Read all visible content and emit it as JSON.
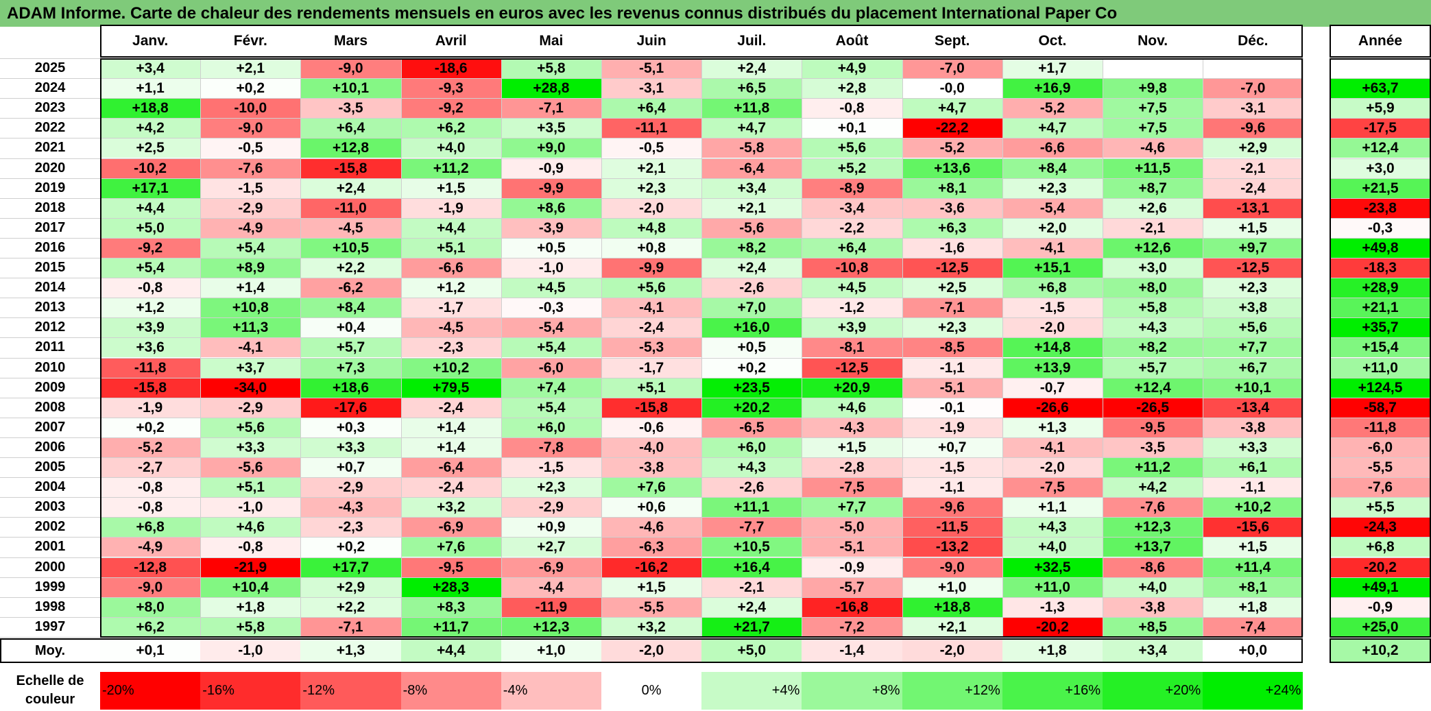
{
  "title": "ADAM Informe. Carte de chaleur des rendements mensuels en euros avec les revenus connus distribués du placement International Paper Co",
  "chart_data": {
    "type": "heatmap",
    "title": "ADAM Informe. Carte de chaleur des rendements mensuels en euros avec les revenus connus distribués du placement International Paper Co",
    "columns": [
      "Janv.",
      "Févr.",
      "Mars",
      "Avril",
      "Mai",
      "Juin",
      "Juil.",
      "Août",
      "Sept.",
      "Oct.",
      "Nov.",
      "Déc."
    ],
    "year_column_label": "Année",
    "rows": [
      {
        "year": "2025",
        "values": [
          "+3,4",
          "+2,1",
          "-9,0",
          "-18,6",
          "+5,8",
          "-5,1",
          "+2,4",
          "+4,9",
          "-7,0",
          "+1,7",
          "",
          ""
        ],
        "annual": ""
      },
      {
        "year": "2024",
        "values": [
          "+1,1",
          "+0,2",
          "+10,1",
          "-9,3",
          "+28,8",
          "-3,1",
          "+6,5",
          "+2,8",
          "-0,0",
          "+16,9",
          "+9,8",
          "-7,0"
        ],
        "annual": "+63,7"
      },
      {
        "year": "2023",
        "values": [
          "+18,8",
          "-10,0",
          "-3,5",
          "-9,2",
          "-7,1",
          "+6,4",
          "+11,8",
          "-0,8",
          "+4,7",
          "-5,2",
          "+7,5",
          "-3,1"
        ],
        "annual": "+5,9"
      },
      {
        "year": "2022",
        "values": [
          "+4,2",
          "-9,0",
          "+6,4",
          "+6,2",
          "+3,5",
          "-11,1",
          "+4,7",
          "+0,1",
          "-22,2",
          "+4,7",
          "+7,5",
          "-9,6"
        ],
        "annual": "-17,5"
      },
      {
        "year": "2021",
        "values": [
          "+2,5",
          "-0,5",
          "+12,8",
          "+4,0",
          "+9,0",
          "-0,5",
          "-5,8",
          "+5,6",
          "-5,2",
          "-6,6",
          "-4,6",
          "+2,9"
        ],
        "annual": "+12,4"
      },
      {
        "year": "2020",
        "values": [
          "-10,2",
          "-7,6",
          "-15,8",
          "+11,2",
          "-0,9",
          "+2,1",
          "-6,4",
          "+5,2",
          "+13,6",
          "+8,4",
          "+11,5",
          "-2,1"
        ],
        "annual": "+3,0"
      },
      {
        "year": "2019",
        "values": [
          "+17,1",
          "-1,5",
          "+2,4",
          "+1,5",
          "-9,9",
          "+2,3",
          "+3,4",
          "-8,9",
          "+8,1",
          "+2,3",
          "+8,7",
          "-2,4"
        ],
        "annual": "+21,5"
      },
      {
        "year": "2018",
        "values": [
          "+4,4",
          "-2,9",
          "-11,0",
          "-1,9",
          "+8,6",
          "-2,0",
          "+2,1",
          "-3,4",
          "-3,6",
          "-5,4",
          "+2,6",
          "-13,1"
        ],
        "annual": "-23,8"
      },
      {
        "year": "2017",
        "values": [
          "+5,0",
          "-4,9",
          "-4,5",
          "+4,4",
          "-3,9",
          "+4,8",
          "-5,6",
          "-2,2",
          "+6,3",
          "+2,0",
          "-2,1",
          "+1,5"
        ],
        "annual": "-0,3"
      },
      {
        "year": "2016",
        "values": [
          "-9,2",
          "+5,4",
          "+10,5",
          "+5,1",
          "+0,5",
          "+0,8",
          "+8,2",
          "+6,4",
          "-1,6",
          "-4,1",
          "+12,6",
          "+9,7"
        ],
        "annual": "+49,8"
      },
      {
        "year": "2015",
        "values": [
          "+5,4",
          "+8,9",
          "+2,2",
          "-6,6",
          "-1,0",
          "-9,9",
          "+2,4",
          "-10,8",
          "-12,5",
          "+15,1",
          "+3,0",
          "-12,5"
        ],
        "annual": "-18,3"
      },
      {
        "year": "2014",
        "values": [
          "-0,8",
          "+1,4",
          "-6,2",
          "+1,2",
          "+4,5",
          "+5,6",
          "-2,6",
          "+4,5",
          "+2,5",
          "+6,8",
          "+8,0",
          "+2,3"
        ],
        "annual": "+28,9"
      },
      {
        "year": "2013",
        "values": [
          "+1,2",
          "+10,8",
          "+8,4",
          "-1,7",
          "-0,3",
          "-4,1",
          "+7,0",
          "-1,2",
          "-7,1",
          "-1,5",
          "+5,8",
          "+3,8"
        ],
        "annual": "+21,1"
      },
      {
        "year": "2012",
        "values": [
          "+3,9",
          "+11,3",
          "+0,4",
          "-4,5",
          "-5,4",
          "-2,4",
          "+16,0",
          "+3,9",
          "+2,3",
          "-2,0",
          "+4,3",
          "+5,6"
        ],
        "annual": "+35,7"
      },
      {
        "year": "2011",
        "values": [
          "+3,6",
          "-4,1",
          "+5,7",
          "-2,3",
          "+5,4",
          "-5,3",
          "+0,5",
          "-8,1",
          "-8,5",
          "+14,8",
          "+8,2",
          "+7,7"
        ],
        "annual": "+15,4"
      },
      {
        "year": "2010",
        "values": [
          "-11,8",
          "+3,7",
          "+7,3",
          "+10,2",
          "-6,0",
          "-1,7",
          "+0,2",
          "-12,5",
          "-1,1",
          "+13,9",
          "+5,7",
          "+6,7"
        ],
        "annual": "+11,0"
      },
      {
        "year": "2009",
        "values": [
          "-15,8",
          "-34,0",
          "+18,6",
          "+79,5",
          "+7,4",
          "+5,1",
          "+23,5",
          "+20,9",
          "-5,1",
          "-0,7",
          "+12,4",
          "+10,1"
        ],
        "annual": "+124,5"
      },
      {
        "year": "2008",
        "values": [
          "-1,9",
          "-2,9",
          "-17,6",
          "-2,4",
          "+5,4",
          "-15,8",
          "+20,2",
          "+4,6",
          "-0,1",
          "-26,6",
          "-26,5",
          "-13,4"
        ],
        "annual": "-58,7"
      },
      {
        "year": "2007",
        "values": [
          "+0,2",
          "+5,6",
          "+0,3",
          "+1,4",
          "+6,0",
          "-0,6",
          "-6,5",
          "-4,3",
          "-1,9",
          "+1,3",
          "-9,5",
          "-3,8"
        ],
        "annual": "-11,8"
      },
      {
        "year": "2006",
        "values": [
          "-5,2",
          "+3,3",
          "+3,3",
          "+1,4",
          "-7,8",
          "-4,0",
          "+6,0",
          "+1,5",
          "+0,7",
          "-4,1",
          "-3,5",
          "+3,3"
        ],
        "annual": "-6,0"
      },
      {
        "year": "2005",
        "values": [
          "-2,7",
          "-5,6",
          "+0,7",
          "-6,4",
          "-1,5",
          "-3,8",
          "+4,3",
          "-2,8",
          "-1,5",
          "-2,0",
          "+11,2",
          "+6,1"
        ],
        "annual": "-5,5"
      },
      {
        "year": "2004",
        "values": [
          "-0,8",
          "+5,1",
          "-2,9",
          "-2,4",
          "+2,3",
          "+7,6",
          "-2,6",
          "-7,5",
          "-1,1",
          "-7,5",
          "+4,2",
          "-1,1"
        ],
        "annual": "-7,6"
      },
      {
        "year": "2003",
        "values": [
          "-0,8",
          "-1,0",
          "-4,3",
          "+3,2",
          "-2,9",
          "+0,6",
          "+11,1",
          "+7,7",
          "-9,6",
          "+1,1",
          "-7,6",
          "+10,2"
        ],
        "annual": "+5,5"
      },
      {
        "year": "2002",
        "values": [
          "+6,8",
          "+4,6",
          "-2,3",
          "-6,9",
          "+0,9",
          "-4,6",
          "-7,7",
          "-5,0",
          "-11,5",
          "+4,3",
          "+12,3",
          "-15,6"
        ],
        "annual": "-24,3"
      },
      {
        "year": "2001",
        "values": [
          "-4,9",
          "-0,8",
          "+0,2",
          "+7,6",
          "+2,7",
          "-6,3",
          "+10,5",
          "-5,1",
          "-13,2",
          "+4,0",
          "+13,7",
          "+1,5"
        ],
        "annual": "+6,8"
      },
      {
        "year": "2000",
        "values": [
          "-12,8",
          "-21,9",
          "+17,7",
          "-9,5",
          "-6,9",
          "-16,2",
          "+16,4",
          "-0,9",
          "-9,0",
          "+32,5",
          "-8,6",
          "+11,4"
        ],
        "annual": "-20,2"
      },
      {
        "year": "1999",
        "values": [
          "-9,0",
          "+10,4",
          "+2,9",
          "+28,3",
          "-4,4",
          "+1,5",
          "-2,1",
          "-5,7",
          "+1,0",
          "+11,0",
          "+4,0",
          "+8,1"
        ],
        "annual": "+49,1"
      },
      {
        "year": "1998",
        "values": [
          "+8,0",
          "+1,8",
          "+2,2",
          "+8,3",
          "-11,9",
          "-5,5",
          "+2,4",
          "-16,8",
          "+18,8",
          "-1,3",
          "-3,8",
          "+1,8"
        ],
        "annual": "-0,9"
      },
      {
        "year": "1997",
        "values": [
          "+6,2",
          "+5,8",
          "-7,1",
          "+11,7",
          "+12,3",
          "+3,2",
          "+21,7",
          "-7,2",
          "+2,1",
          "-20,2",
          "+8,5",
          "-7,4"
        ],
        "annual": "+25,0"
      }
    ],
    "average": {
      "label": "Moy.",
      "values": [
        "+0,1",
        "-1,0",
        "+1,3",
        "+4,4",
        "+1,0",
        "-2,0",
        "+5,0",
        "-1,4",
        "-2,0",
        "+1,8",
        "+3,4",
        "+0,0"
      ],
      "annual": "+10,2"
    },
    "color_scale": {
      "label": "Echelle de couleur",
      "stops": [
        "-20%",
        "-16%",
        "-12%",
        "-8%",
        "-4%",
        "0%",
        "+4%",
        "+8%",
        "+12%",
        "+16%",
        "+20%",
        "+24%"
      ],
      "stop_values": [
        -20,
        -16,
        -12,
        -8,
        -4,
        0,
        4,
        8,
        12,
        16,
        20,
        24
      ],
      "negative_color": "#ff0000",
      "neutral_color": "#ffffff",
      "positive_color": "#00ee00"
    }
  }
}
